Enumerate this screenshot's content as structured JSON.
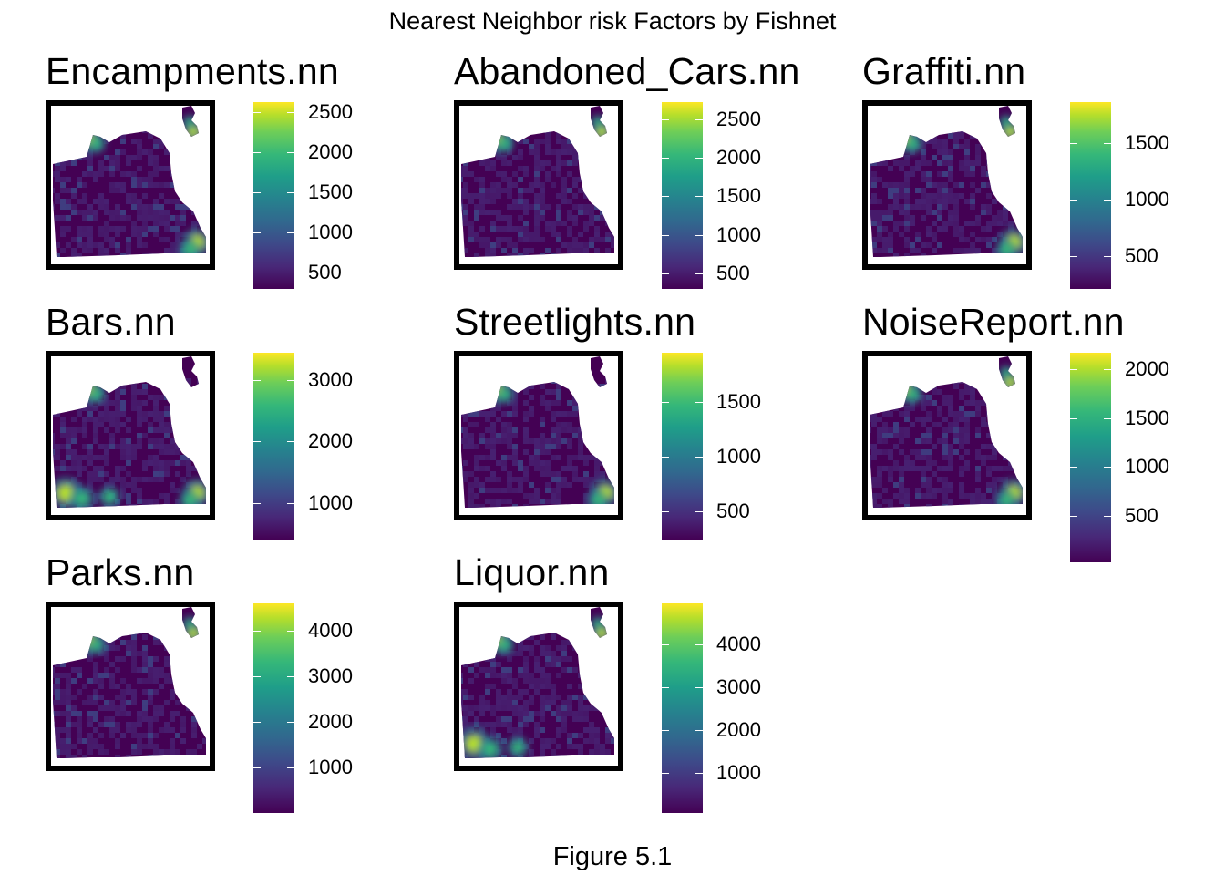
{
  "title": "Nearest Neighbor risk Factors by Fishnet",
  "caption": "Figure 5.1",
  "palette": [
    "#440154",
    "#482878",
    "#3e4989",
    "#31688e",
    "#26828e",
    "#1f9e89",
    "#35b779",
    "#6ece58",
    "#b5de2b",
    "#fde725"
  ],
  "panels": [
    {
      "title": "Encampments.nn",
      "scale": {
        "min": 300,
        "max": 2620,
        "ticks": [
          500,
          1000,
          1500,
          2000,
          2500
        ]
      },
      "hotspots": [
        "north-tip",
        "island-top",
        "southeast-corner"
      ]
    },
    {
      "title": "Abandoned_Cars.nn",
      "scale": {
        "min": 300,
        "max": 2720,
        "ticks": [
          500,
          1000,
          1500,
          2000,
          2500
        ]
      },
      "hotspots": [
        "north-tip",
        "island-top"
      ]
    },
    {
      "title": "Graffiti.nn",
      "scale": {
        "min": 210,
        "max": 1860,
        "ticks": [
          500,
          1000,
          1500
        ]
      },
      "hotspots": [
        "north-tip",
        "island-top",
        "southeast-corner"
      ]
    },
    {
      "title": "Bars.nn",
      "scale": {
        "min": 400,
        "max": 3450,
        "ticks": [
          1000,
          2000,
          3000
        ]
      },
      "hotspots": [
        "north-tip",
        "southwest",
        "southeast-corner"
      ]
    },
    {
      "title": "Streetlights.nn",
      "scale": {
        "min": 240,
        "max": 1950,
        "ticks": [
          500,
          1000,
          1500
        ]
      },
      "hotspots": [
        "north-tip",
        "southeast-corner"
      ]
    },
    {
      "title": "NoiseReport.nn",
      "scale": {
        "min": 20,
        "max": 2170,
        "ticks": [
          500,
          1000,
          1500,
          2000
        ]
      },
      "hotspots": [
        "north-tip",
        "island-top",
        "southeast-corner"
      ]
    },
    {
      "title": "Parks.nn",
      "scale": {
        "min": 10,
        "max": 4590,
        "ticks": [
          1000,
          2000,
          3000,
          4000
        ]
      },
      "hotspots": [
        "island-top",
        "north-tip"
      ]
    },
    {
      "title": "Liquor.nn",
      "scale": {
        "min": 70,
        "max": 4950,
        "ticks": [
          1000,
          2000,
          3000,
          4000
        ]
      },
      "hotspots": [
        "island-top",
        "southwest",
        "north-tip"
      ]
    }
  ]
}
